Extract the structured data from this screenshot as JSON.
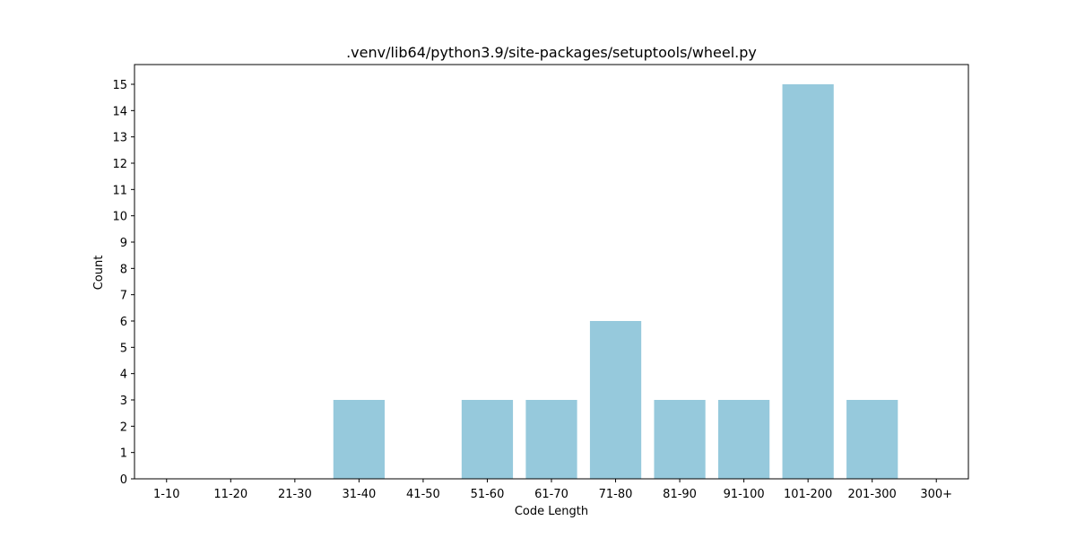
{
  "chart_data": {
    "type": "bar",
    "title": ".venv/lib64/python3.9/site-packages/setuptools/wheel.py",
    "xlabel": "Code Length",
    "ylabel": "Count",
    "categories": [
      "1-10",
      "11-20",
      "21-30",
      "31-40",
      "41-50",
      "51-60",
      "61-70",
      "71-80",
      "81-90",
      "91-100",
      "101-200",
      "201-300",
      "300+"
    ],
    "values": [
      0,
      0,
      0,
      3,
      0,
      3,
      3,
      6,
      3,
      3,
      15,
      3,
      0
    ],
    "ylim": [
      0,
      15.75
    ],
    "yticks": [
      0,
      1,
      2,
      3,
      4,
      5,
      6,
      7,
      8,
      9,
      10,
      11,
      12,
      13,
      14,
      15
    ],
    "bar_color": "#96c9dc",
    "grid": false,
    "legend": "none"
  }
}
